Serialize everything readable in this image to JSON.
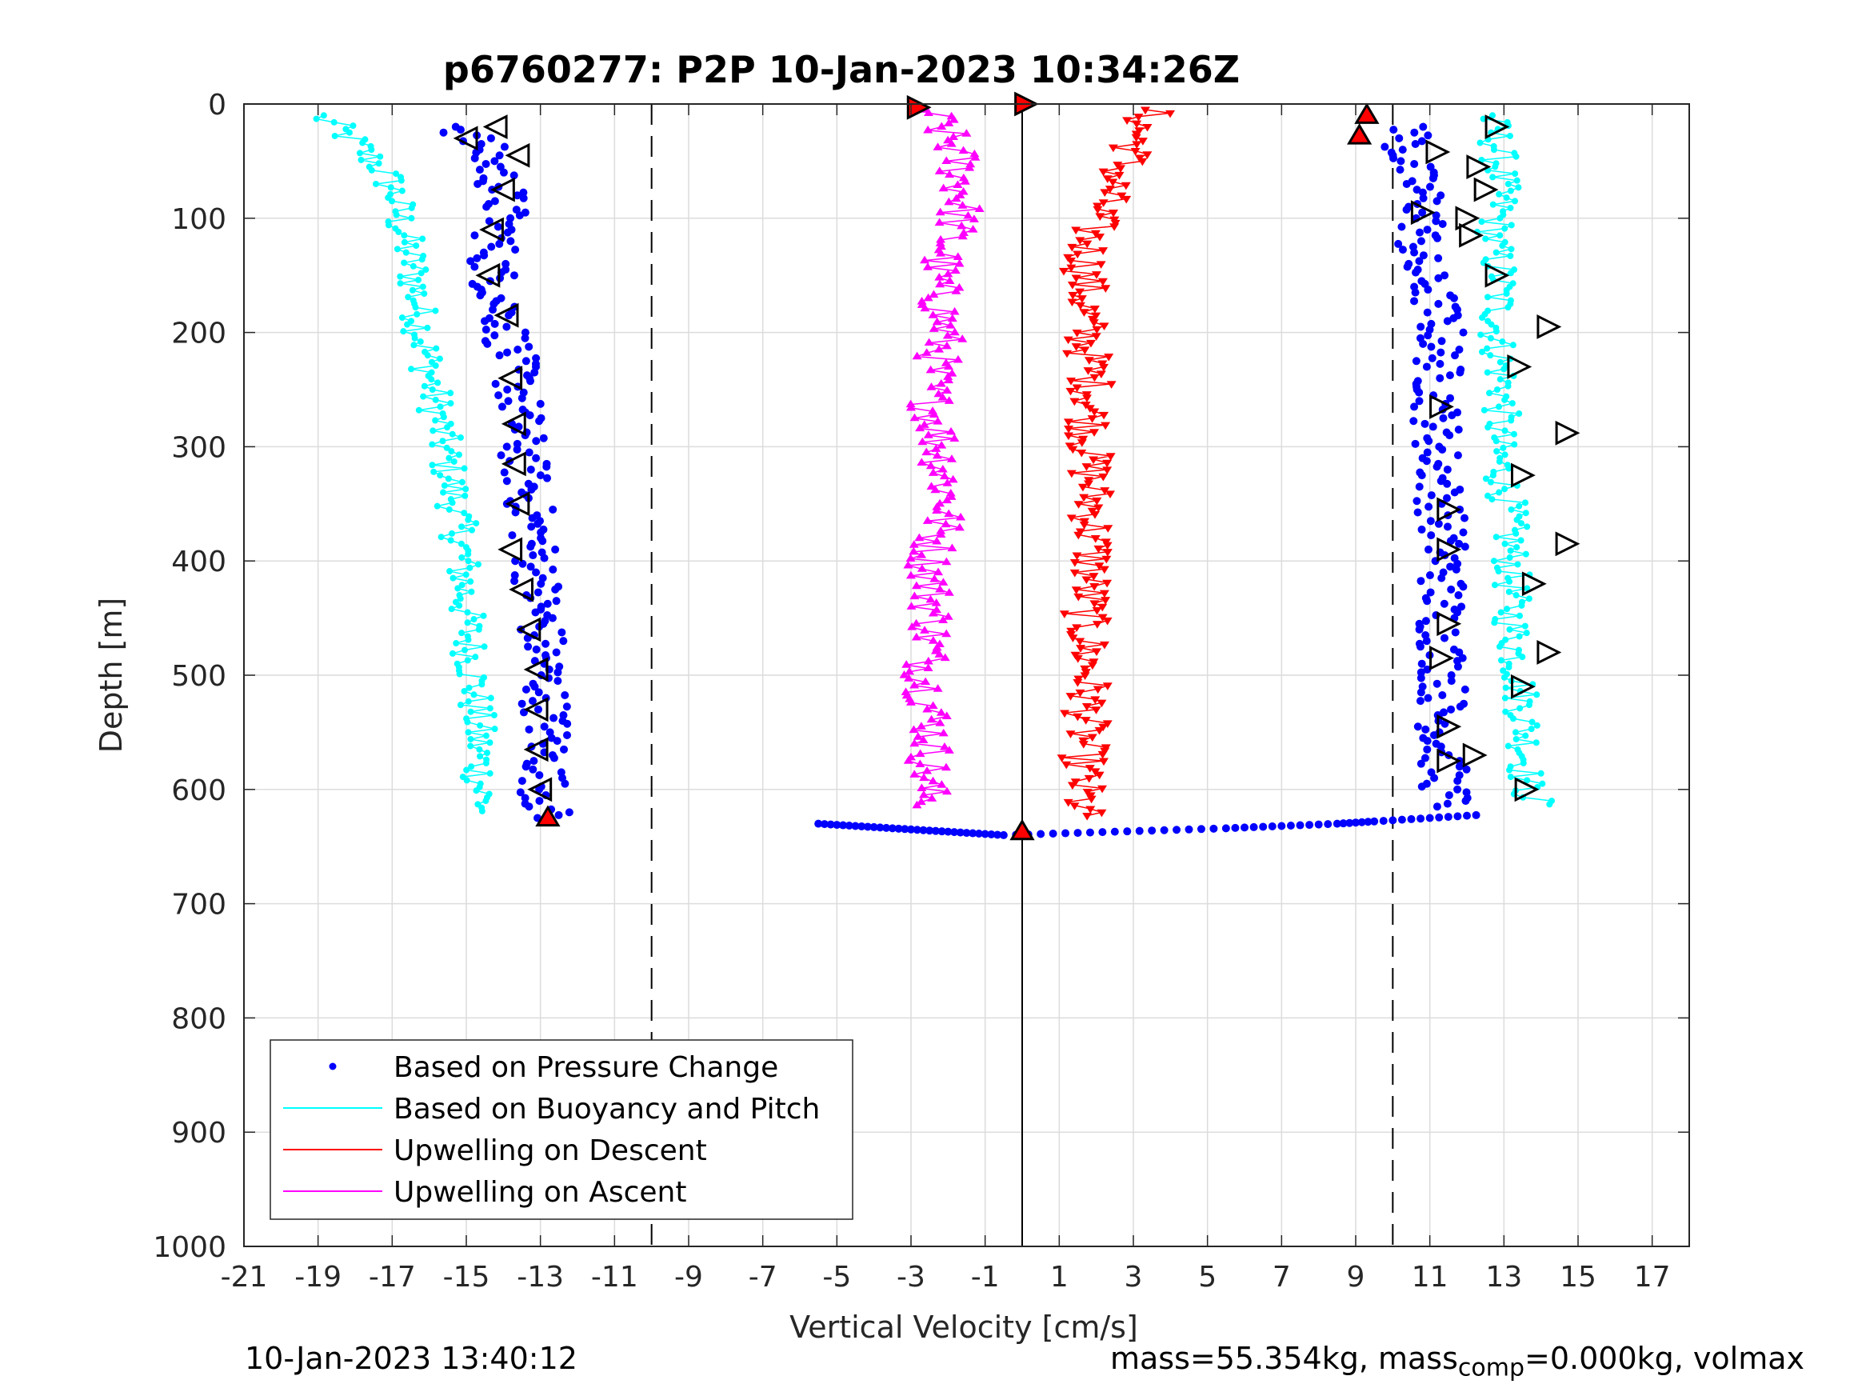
{
  "chart_data": {
    "type": "scatter",
    "title": "p6760277: P2P 10-Jan-2023 10:34:26Z",
    "xlabel": "Vertical Velocity [cm/s]",
    "ylabel": "Depth [m]",
    "xlim": [
      -21,
      18
    ],
    "ylim": [
      0,
      1000
    ],
    "y_reversed": true,
    "grid": true,
    "xticks": [
      -21,
      -19,
      -17,
      -15,
      -13,
      -11,
      -9,
      -7,
      -5,
      -3,
      -1,
      1,
      3,
      5,
      7,
      9,
      11,
      13,
      15,
      17
    ],
    "yticks": [
      0,
      100,
      200,
      300,
      400,
      500,
      600,
      700,
      800,
      900,
      1000
    ],
    "reference_lines": [
      {
        "x": -10,
        "style": "dashed"
      },
      {
        "x": 10,
        "style": "dashed"
      },
      {
        "x": 0,
        "style": "solid"
      }
    ],
    "legend_position": "bottom-left",
    "series": [
      {
        "name": "Based on Pressure Change",
        "color": "#0000ff",
        "marker": "dot",
        "profiles": [
          {
            "leg": "descent",
            "depths": [
              20,
              40,
              60,
              80,
              100,
              120,
              140,
              160,
              180,
              200,
              250,
              300,
              350,
              400,
              450,
              500,
              550,
              600,
              625
            ],
            "values": [
              -15.2,
              -14.5,
              -14.2,
              -14.0,
              -14.0,
              -14.2,
              -14.3,
              -14.2,
              -14.0,
              -13.9,
              -13.6,
              -13.5,
              -13.3,
              -13.1,
              -13.0,
              -12.9,
              -12.8,
              -12.9,
              -12.8
            ]
          },
          {
            "leg": "ascent",
            "depths": [
              20,
              40,
              60,
              80,
              100,
              120,
              140,
              160,
              180,
              200,
              250,
              300,
              350,
              400,
              450,
              500,
              550,
              600,
              615
            ],
            "values": [
              10.6,
              10.3,
              10.5,
              10.8,
              10.9,
              10.7,
              10.6,
              11.0,
              11.2,
              11.3,
              11.2,
              11.2,
              11.3,
              11.4,
              11.3,
              11.4,
              11.3,
              11.4,
              11.6
            ]
          },
          {
            "leg": "bottom-turn",
            "depths": [
              630,
              632,
              634,
              636,
              638,
              640,
              638,
              636,
              634,
              632,
              630,
              628,
              625,
              622
            ],
            "values": [
              -5.5,
              -4.5,
              -3.5,
              -2.5,
              -1.5,
              -0.5,
              1.5,
              3.5,
              5.5,
              7.0,
              8.5,
              9.5,
              11.0,
              12.5
            ]
          }
        ]
      },
      {
        "name": "Based on Buoyancy and Pitch",
        "color": "#00ffff",
        "marker": "dot-line",
        "profiles": [
          {
            "leg": "descent",
            "depths": [
              10,
              20,
              40,
              60,
              80,
              100,
              150,
              200,
              250,
              300,
              350,
              400,
              450,
              500,
              550,
              600,
              620
            ],
            "values": [
              -19.0,
              -18.5,
              -17.8,
              -17.2,
              -16.9,
              -16.8,
              -16.4,
              -16.2,
              -15.9,
              -15.6,
              -15.3,
              -15.1,
              -15.0,
              -14.8,
              -14.7,
              -14.6,
              -14.5
            ]
          },
          {
            "leg": "ascent",
            "depths": [
              10,
              30,
              60,
              90,
              120,
              150,
              200,
              250,
              300,
              350,
              400,
              450,
              500,
              550,
              600,
              615
            ],
            "values": [
              12.6,
              12.8,
              12.9,
              12.9,
              12.7,
              12.9,
              12.8,
              13.0,
              12.8,
              13.1,
              13.2,
              13.2,
              13.4,
              13.6,
              13.6,
              14.0
            ]
          }
        ]
      },
      {
        "name": "Upwelling on Descent",
        "color": "#ff0000",
        "marker": "triangle-down",
        "depths": [
          5,
          20,
          40,
          60,
          80,
          100,
          120,
          150,
          200,
          250,
          300,
          350,
          400,
          450,
          500,
          550,
          600,
          625
        ],
        "values": [
          3.5,
          3.2,
          3.0,
          2.6,
          2.3,
          2.0,
          1.8,
          1.7,
          1.7,
          1.9,
          1.8,
          1.9,
          1.9,
          1.7,
          1.8,
          1.7,
          1.6,
          1.6
        ]
      },
      {
        "name": "Upwelling on Ascent",
        "color": "#ff00ff",
        "marker": "triangle-up",
        "depths": [
          5,
          20,
          40,
          60,
          80,
          100,
          120,
          150,
          200,
          250,
          300,
          350,
          400,
          450,
          500,
          550,
          600,
          615
        ],
        "values": [
          -2.5,
          -2.2,
          -1.8,
          -1.7,
          -1.6,
          -1.7,
          -2.0,
          -2.3,
          -2.1,
          -2.5,
          -2.2,
          -2.0,
          -2.5,
          -2.4,
          -2.6,
          -2.4,
          -2.6,
          -2.4
        ]
      }
    ],
    "markers": [
      {
        "type": "left-open",
        "x": -14.2,
        "depth": 20
      },
      {
        "type": "left-open",
        "x": -13.6,
        "depth": 45
      },
      {
        "type": "left-open",
        "x": -14.0,
        "depth": 75
      },
      {
        "type": "left-open",
        "x": -14.3,
        "depth": 110
      },
      {
        "type": "left-open",
        "x": -14.4,
        "depth": 150
      },
      {
        "type": "left-open",
        "x": -13.9,
        "depth": 185
      },
      {
        "type": "left-open",
        "x": -13.8,
        "depth": 240
      },
      {
        "type": "left-open",
        "x": -13.7,
        "depth": 280
      },
      {
        "type": "left-open",
        "x": -13.7,
        "depth": 315
      },
      {
        "type": "left-open",
        "x": -13.6,
        "depth": 350
      },
      {
        "type": "left-open",
        "x": -13.8,
        "depth": 390
      },
      {
        "type": "left-open",
        "x": -13.5,
        "depth": 425
      },
      {
        "type": "left-open",
        "x": -13.3,
        "depth": 460
      },
      {
        "type": "left-open",
        "x": -13.1,
        "depth": 495
      },
      {
        "type": "left-open",
        "x": -13.1,
        "depth": 530
      },
      {
        "type": "left-open",
        "x": -13.1,
        "depth": 565
      },
      {
        "type": "left-open",
        "x": -13.0,
        "depth": 600
      },
      {
        "type": "left-open",
        "x": -15.0,
        "depth": 30
      },
      {
        "type": "right-open",
        "x": 12.8,
        "depth": 20
      },
      {
        "type": "right-open",
        "x": 12.3,
        "depth": 55
      },
      {
        "type": "right-open",
        "x": 12.5,
        "depth": 75
      },
      {
        "type": "right-open",
        "x": 12.0,
        "depth": 100
      },
      {
        "type": "right-open",
        "x": 12.1,
        "depth": 115
      },
      {
        "type": "right-open",
        "x": 12.8,
        "depth": 150
      },
      {
        "type": "right-open",
        "x": 14.2,
        "depth": 195
      },
      {
        "type": "right-open",
        "x": 13.4,
        "depth": 230
      },
      {
        "type": "right-open",
        "x": 11.3,
        "depth": 265
      },
      {
        "type": "right-open",
        "x": 14.7,
        "depth": 288
      },
      {
        "type": "right-open",
        "x": 13.5,
        "depth": 325
      },
      {
        "type": "right-open",
        "x": 11.5,
        "depth": 355
      },
      {
        "type": "right-open",
        "x": 14.7,
        "depth": 385
      },
      {
        "type": "right-open",
        "x": 11.5,
        "depth": 390
      },
      {
        "type": "right-open",
        "x": 13.8,
        "depth": 420
      },
      {
        "type": "right-open",
        "x": 11.5,
        "depth": 455
      },
      {
        "type": "right-open",
        "x": 14.2,
        "depth": 480
      },
      {
        "type": "right-open",
        "x": 11.3,
        "depth": 485
      },
      {
        "type": "right-open",
        "x": 13.5,
        "depth": 510
      },
      {
        "type": "right-open",
        "x": 11.5,
        "depth": 545
      },
      {
        "type": "right-open",
        "x": 12.2,
        "depth": 570
      },
      {
        "type": "right-open",
        "x": 11.5,
        "depth": 575
      },
      {
        "type": "right-open",
        "x": 13.6,
        "depth": 600
      },
      {
        "type": "right-open",
        "x": 11.2,
        "depth": 42
      },
      {
        "type": "right-open",
        "x": 10.8,
        "depth": 95
      },
      {
        "type": "red-right",
        "x": -2.8,
        "depth": 3
      },
      {
        "type": "red-right",
        "x": 0.1,
        "depth": 0
      },
      {
        "type": "red-up",
        "x": 9.3,
        "depth": 10
      },
      {
        "type": "red-up",
        "x": 9.1,
        "depth": 28
      },
      {
        "type": "red-up",
        "x": -12.8,
        "depth": 625
      },
      {
        "type": "red-up",
        "x": 0.0,
        "depth": 637
      }
    ]
  },
  "legend": {
    "entries": [
      {
        "label": "Based on Pressure Change",
        "color": "#0000ff",
        "style": "dot"
      },
      {
        "label": "Based on Buoyancy and Pitch",
        "color": "#00ffff",
        "style": "line"
      },
      {
        "label": "Upwelling on Descent",
        "color": "#ff0000",
        "style": "line"
      },
      {
        "label": "Upwelling on Ascent",
        "color": "#ff00ff",
        "style": "line"
      }
    ]
  },
  "footer": {
    "timestamp": "10-Jan-2023 13:40:12",
    "mass_text": "mass=55.354kg, mass",
    "mass_sub": "comp",
    "mass_tail": "=0.000kg, volmax"
  }
}
